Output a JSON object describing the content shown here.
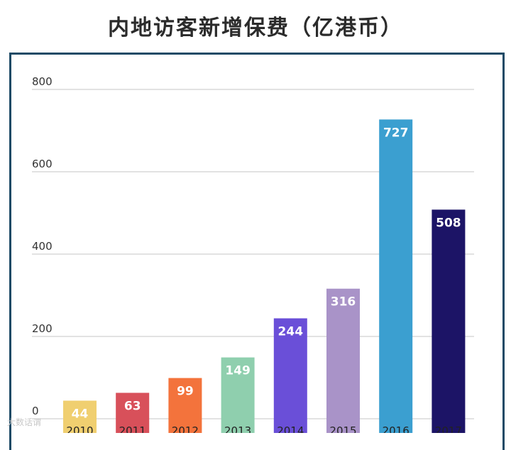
{
  "title": "内地访客新增保费（亿港币）",
  "watermark": "大数话谓",
  "chart_data": {
    "type": "bar",
    "title": "内地访客新增保费（亿港币）",
    "xlabel": "",
    "ylabel": "",
    "categories": [
      "2010",
      "2011",
      "2012",
      "2013",
      "2014",
      "2015",
      "2016",
      "2017"
    ],
    "values": [
      44,
      63,
      99,
      149,
      244,
      316,
      727,
      508
    ],
    "colors": [
      "#f0cf70",
      "#d8505a",
      "#f3733c",
      "#8fcfae",
      "#6a4fd8",
      "#a993c8",
      "#3b9fd0",
      "#1c1466"
    ],
    "ylim": [
      0,
      800
    ],
    "yticks": [
      0,
      200,
      400,
      600,
      800
    ],
    "grid": true
  }
}
